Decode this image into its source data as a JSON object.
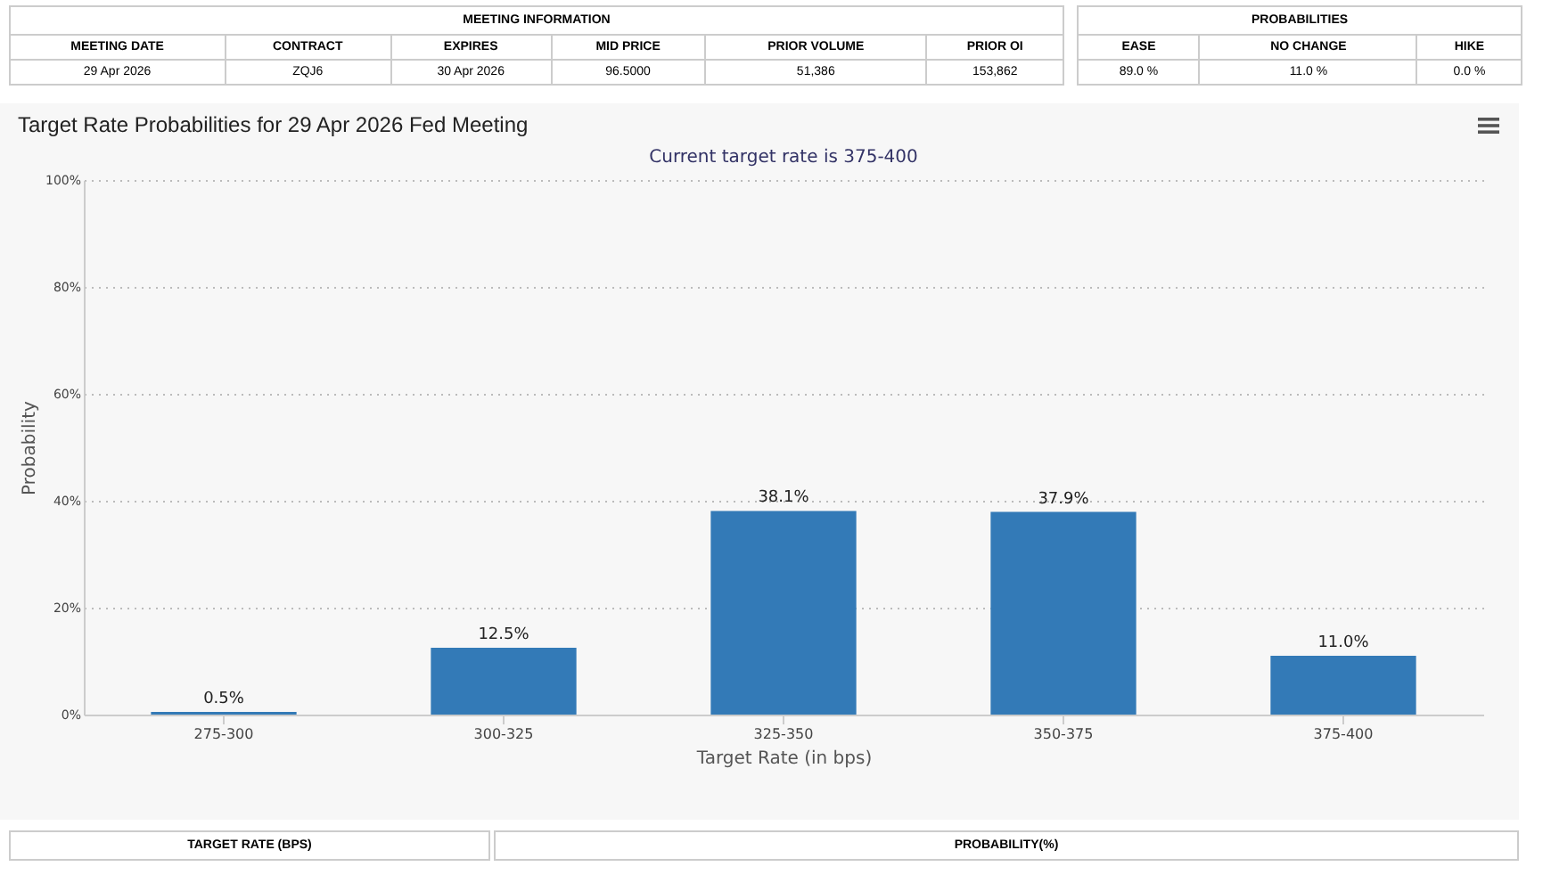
{
  "chart_data": {
    "type": "bar",
    "title": "Target Rate Probabilities for 29 Apr 2026 Fed Meeting",
    "subtitle": "Current target rate is 375-400",
    "xlabel": "Target Rate (in bps)",
    "ylabel": "Probability",
    "categories": [
      "275-300",
      "300-325",
      "325-350",
      "350-375",
      "375-400"
    ],
    "values": [
      0.5,
      12.5,
      38.1,
      37.9,
      11.0
    ],
    "value_labels": [
      "0.5%",
      "12.5%",
      "38.1%",
      "37.9%",
      "11.0%"
    ],
    "color": "#337ab7",
    "ylim": [
      0,
      100
    ],
    "yticks": [
      {
        "value": 0,
        "label": "0%"
      },
      {
        "value": 20,
        "label": "20%"
      },
      {
        "value": 40,
        "label": "40%"
      },
      {
        "value": 60,
        "label": "60%"
      },
      {
        "value": 80,
        "label": "80%"
      },
      {
        "value": 100,
        "label": "100%"
      }
    ],
    "grid": "y",
    "annotations": [
      "MEETING INFORMATION",
      "MEETING DATE",
      "CONTRACT",
      "EXPIRES",
      "MID PRICE",
      "PRIOR VOLUME",
      "PRIOR OI",
      "29 Apr 2026",
      "ZQJ6",
      "30 Apr 2026",
      "96.5000",
      "51,386",
      "153,862",
      "PROBABILITIES",
      "EASE",
      "NO CHANGE",
      "HIKE",
      "89.0 %",
      "11.0 %",
      "0.0 %",
      "TARGET RATE (BPS)",
      "PROBABILITY(%)"
    ]
  }
}
